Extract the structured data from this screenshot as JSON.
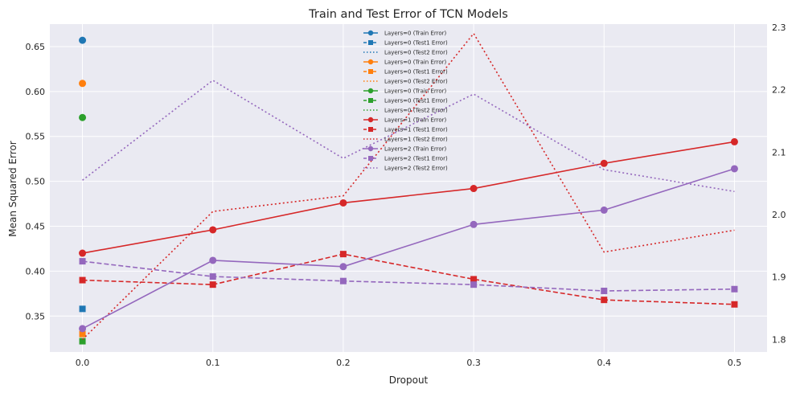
{
  "chart_data": {
    "type": "line",
    "title": "Train and Test Error of TCN Models",
    "xlabel": "Dropout",
    "ylabel": "Mean Squared Error",
    "ylabel_right": "",
    "x": [
      0.0,
      0.1,
      0.2,
      0.3,
      0.4,
      0.5
    ],
    "x_tick_labels": [
      "0.0",
      "0.1",
      "0.2",
      "0.3",
      "0.4",
      "0.5"
    ],
    "xlim": [
      -0.025,
      0.525
    ],
    "ylim": [
      0.31,
      0.675
    ],
    "y_ticks": [
      0.35,
      0.4,
      0.45,
      0.5,
      0.55,
      0.6,
      0.65
    ],
    "y_tick_labels": [
      "0.35",
      "0.40",
      "0.45",
      "0.50",
      "0.55",
      "0.60",
      "0.65"
    ],
    "y2lim": [
      1.78,
      2.305
    ],
    "y2_ticks": [
      1.8,
      1.9,
      2.0,
      2.1,
      2.2,
      2.3
    ],
    "y2_tick_labels": [
      "1.8",
      "1.9",
      "2.0",
      "2.1",
      "2.2",
      "2.3"
    ],
    "grid": true,
    "legend_position": "top-center",
    "background": "#eaeaf2",
    "series": [
      {
        "name": "Layers=0 (Train Error)",
        "color": "#1f77b4",
        "style": "solid",
        "marker": "circle",
        "axis": "left",
        "x": [
          0.0
        ],
        "values": [
          0.657
        ]
      },
      {
        "name": "Layers=0 (Test1 Error)",
        "color": "#1f77b4",
        "style": "dashed",
        "marker": "square",
        "axis": "left",
        "x": [
          0.0
        ],
        "values": [
          0.358
        ]
      },
      {
        "name": "Layers=0 (Test2 Error)",
        "color": "#1f77b4",
        "style": "dotted",
        "marker": "none",
        "axis": "right",
        "x": [],
        "values": []
      },
      {
        "name": "Layers=0 (Train Error)",
        "color": "#ff7f0e",
        "style": "solid",
        "marker": "circle",
        "axis": "left",
        "x": [
          0.0
        ],
        "values": [
          0.609
        ]
      },
      {
        "name": "Layers=0 (Test1 Error)",
        "color": "#ff7f0e",
        "style": "dashed",
        "marker": "square",
        "axis": "left",
        "x": [
          0.0
        ],
        "values": [
          0.33
        ]
      },
      {
        "name": "Layers=0 (Test2 Error)",
        "color": "#ff7f0e",
        "style": "dotted",
        "marker": "none",
        "axis": "right",
        "x": [],
        "values": []
      },
      {
        "name": "Layers=0 (Train Error)",
        "color": "#2ca02c",
        "style": "solid",
        "marker": "circle",
        "axis": "left",
        "x": [
          0.0
        ],
        "values": [
          0.571
        ]
      },
      {
        "name": "Layers=0 (Test1 Error)",
        "color": "#2ca02c",
        "style": "dashed",
        "marker": "square",
        "axis": "left",
        "x": [
          0.0
        ],
        "values": [
          0.322
        ]
      },
      {
        "name": "Layers=0 (Test2 Error)",
        "color": "#2ca02c",
        "style": "dotted",
        "marker": "none",
        "axis": "right",
        "x": [],
        "values": []
      },
      {
        "name": "Layers=1 (Train Error)",
        "color": "#d62728",
        "style": "solid",
        "marker": "circle",
        "axis": "left",
        "x": [
          0.0,
          0.1,
          0.2,
          0.3,
          0.4,
          0.5
        ],
        "values": [
          0.42,
          0.446,
          0.476,
          0.492,
          0.52,
          0.544
        ]
      },
      {
        "name": "Layers=1 (Test1 Error)",
        "color": "#d62728",
        "style": "dashed",
        "marker": "square",
        "axis": "left",
        "x": [
          0.0,
          0.1,
          0.2,
          0.3,
          0.4,
          0.5
        ],
        "values": [
          0.39,
          0.385,
          0.419,
          0.391,
          0.368,
          0.363
        ]
      },
      {
        "name": "Layers=1 (Test2 Error)",
        "color": "#d62728",
        "style": "dotted",
        "marker": "none",
        "axis": "right",
        "x": [
          0.0,
          0.1,
          0.2,
          0.3,
          0.4,
          0.5
        ],
        "values": [
          1.8,
          2.005,
          2.03,
          2.29,
          1.94,
          1.975
        ]
      },
      {
        "name": "Layers=2 (Train Error)",
        "color": "#9467bd",
        "style": "solid",
        "marker": "circle",
        "axis": "left",
        "x": [
          0.0,
          0.1,
          0.2,
          0.3,
          0.4,
          0.5
        ],
        "values": [
          0.336,
          0.412,
          0.405,
          0.452,
          0.468,
          0.514
        ]
      },
      {
        "name": "Layers=2 (Test1 Error)",
        "color": "#9467bd",
        "style": "dashed",
        "marker": "square",
        "axis": "left",
        "x": [
          0.0,
          0.1,
          0.2,
          0.3,
          0.4,
          0.5
        ],
        "values": [
          0.411,
          0.394,
          0.389,
          0.385,
          0.378,
          0.38
        ]
      },
      {
        "name": "Layers=2 (Test2 Error)",
        "color": "#9467bd",
        "style": "dotted",
        "marker": "none",
        "axis": "right",
        "x": [
          0.0,
          0.1,
          0.2,
          0.3,
          0.4,
          0.5
        ],
        "values": [
          2.055,
          2.215,
          2.09,
          2.193,
          2.072,
          2.037
        ]
      }
    ]
  }
}
